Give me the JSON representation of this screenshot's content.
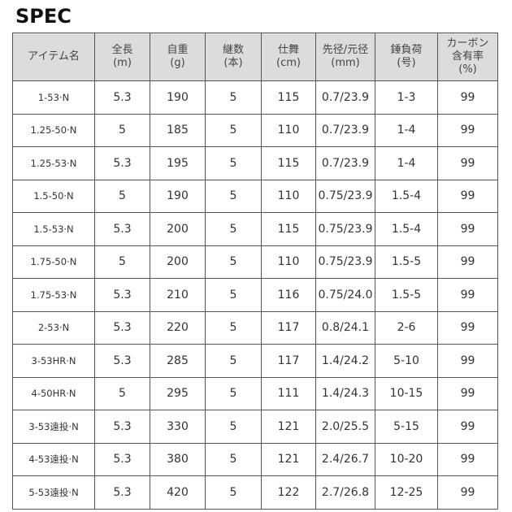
{
  "title": "SPEC",
  "headers": [
    "アイテム名",
    "全長\n(m)",
    "自重\n(g)",
    "継数\n(本)",
    "仕舞\n(cm)",
    "先径/元径\n(mm)",
    "錘負荷\n(号)",
    "カーボン\n含有率\n(%)"
  ],
  "rows": [
    [
      "1-53·N",
      "5.3",
      "190",
      "5",
      "115",
      "0.7/23.9",
      "1-3",
      "99"
    ],
    [
      "1.25-50·N",
      "5",
      "185",
      "5",
      "110",
      "0.7/23.9",
      "1-4",
      "99"
    ],
    [
      "1.25-53·N",
      "5.3",
      "195",
      "5",
      "115",
      "0.7/23.9",
      "1-4",
      "99"
    ],
    [
      "1.5-50·N",
      "5",
      "190",
      "5",
      "110",
      "0.75/23.9",
      "1.5-4",
      "99"
    ],
    [
      "1.5-53·N",
      "5.3",
      "200",
      "5",
      "115",
      "0.75/23.9",
      "1.5-4",
      "99"
    ],
    [
      "1.75-50·N",
      "5",
      "200",
      "5",
      "110",
      "0.75/23.9",
      "1.5-5",
      "99"
    ],
    [
      "1.75-53·N",
      "5.3",
      "210",
      "5",
      "116",
      "0.75/24.0",
      "1.5-5",
      "99"
    ],
    [
      "2-53·N",
      "5.3",
      "220",
      "5",
      "117",
      "0.8/24.1",
      "2-6",
      "99"
    ],
    [
      "3-53HR·N",
      "5.3",
      "285",
      "5",
      "117",
      "1.4/24.2",
      "5-10",
      "99"
    ],
    [
      "4-50HR·N",
      "5",
      "295",
      "5",
      "111",
      "1.4/24.3",
      "10-15",
      "99"
    ],
    [
      "3-53遠投·N",
      "5.3",
      "330",
      "5",
      "121",
      "2.0/25.5",
      "5-15",
      "99"
    ],
    [
      "4-53遠投·N",
      "5.3",
      "380",
      "5",
      "121",
      "2.4/26.7",
      "10-20",
      "99"
    ],
    [
      "5-53遠投·N",
      "5.3",
      "420",
      "5",
      "122",
      "2.7/26.8",
      "12-25",
      "99"
    ]
  ]
}
